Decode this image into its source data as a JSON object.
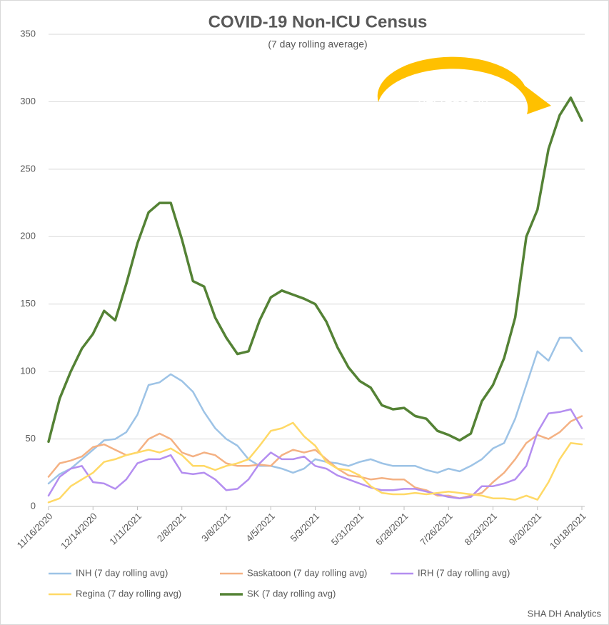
{
  "chart_data": {
    "type": "line",
    "title": "COVID-19 Non-ICU Census",
    "subtitle": "(7 day rolling average)",
    "annotation": [
      "1%",
      "decrease in",
      "last 2 weeks"
    ],
    "source": "SHA DH Analytics",
    "categories": [
      "11/16/2020",
      null,
      null,
      null,
      "12/14/2020",
      null,
      null,
      null,
      "1/11/2021",
      null,
      null,
      null,
      "2/8/2021",
      null,
      null,
      null,
      "3/8/2021",
      null,
      null,
      null,
      "4/5/2021",
      null,
      null,
      null,
      "5/3/2021",
      null,
      null,
      null,
      "5/31/2021",
      null,
      null,
      null,
      "6/28/2021",
      null,
      null,
      null,
      "7/26/2021",
      null,
      null,
      null,
      "8/23/2021",
      null,
      null,
      null,
      "9/20/2021",
      null,
      null,
      null,
      "10/18/2021"
    ],
    "ylim": [
      0,
      350
    ],
    "yticks": [
      0,
      50,
      100,
      150,
      200,
      250,
      300,
      350
    ],
    "grid": true,
    "legend": "bottom",
    "series": [
      {
        "name": "INH (7 day rolling avg)",
        "color": "#9dc3e6",
        "values": [
          17,
          24,
          28,
          35,
          42,
          49,
          50,
          55,
          68,
          90,
          92,
          98,
          93,
          85,
          70,
          58,
          50,
          45,
          35,
          30,
          30,
          28,
          25,
          28,
          35,
          33,
          32,
          30,
          33,
          35,
          32,
          30,
          30,
          30,
          27,
          25,
          28,
          26,
          30,
          35,
          43,
          47,
          65,
          90,
          115,
          108,
          125,
          125,
          115
        ]
      },
      {
        "name": "Saskatoon (7 day rolling avg)",
        "color": "#f4b183",
        "values": [
          22,
          32,
          34,
          37,
          44,
          46,
          42,
          38,
          40,
          50,
          54,
          50,
          40,
          37,
          40,
          38,
          32,
          30,
          30,
          31,
          30,
          38,
          42,
          40,
          42,
          35,
          28,
          23,
          22,
          20,
          21,
          20,
          20,
          14,
          12,
          8,
          8,
          6,
          8,
          10,
          18,
          25,
          35,
          47,
          53,
          50,
          55,
          63,
          67
        ]
      },
      {
        "name": "IRH (7 day rolling avg)",
        "color": "#b48ef0",
        "values": [
          8,
          22,
          28,
          30,
          18,
          17,
          13,
          20,
          32,
          35,
          35,
          38,
          25,
          24,
          25,
          20,
          12,
          13,
          20,
          32,
          40,
          35,
          35,
          37,
          30,
          28,
          23,
          20,
          17,
          14,
          12,
          12,
          13,
          13,
          11,
          9,
          7,
          6,
          7,
          15,
          15,
          17,
          20,
          30,
          55,
          69,
          70,
          72,
          58
        ]
      },
      {
        "name": "Regina (7 day rolling avg)",
        "color": "#ffd966",
        "values": [
          3,
          6,
          15,
          20,
          25,
          33,
          35,
          38,
          40,
          42,
          40,
          43,
          38,
          30,
          30,
          27,
          30,
          32,
          35,
          45,
          56,
          58,
          62,
          52,
          45,
          33,
          28,
          27,
          23,
          15,
          10,
          9,
          9,
          10,
          9,
          10,
          11,
          10,
          9,
          8,
          6,
          6,
          5,
          8,
          5,
          18,
          35,
          47,
          46
        ]
      },
      {
        "name": "SK (7 day rolling avg)",
        "color": "#548235",
        "values": [
          48,
          80,
          100,
          117,
          128,
          145,
          138,
          165,
          195,
          218,
          225,
          225,
          198,
          167,
          163,
          140,
          125,
          113,
          115,
          138,
          155,
          160,
          157,
          154,
          150,
          137,
          118,
          103,
          93,
          88,
          75,
          72,
          73,
          67,
          65,
          56,
          53,
          49,
          54,
          78,
          90,
          110,
          140,
          200,
          220,
          265,
          290,
          303,
          286
        ]
      }
    ]
  }
}
